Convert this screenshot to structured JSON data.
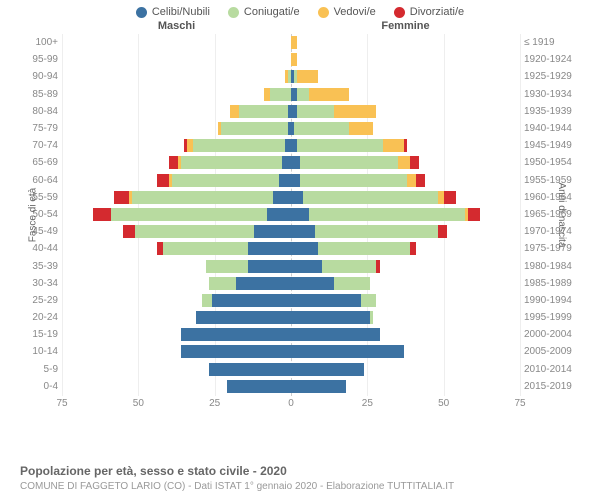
{
  "legend": [
    {
      "label": "Celibi/Nubili",
      "color": "#3c72a2"
    },
    {
      "label": "Coniugati/e",
      "color": "#b8dba0"
    },
    {
      "label": "Vedovi/e",
      "color": "#f9c154"
    },
    {
      "label": "Divorziati/e",
      "color": "#d42a2f"
    }
  ],
  "chart": {
    "type": "population-pyramid",
    "male_header": "Maschi",
    "female_header": "Femmine",
    "left_axis_title": "Fasce di età",
    "right_axis_title": "Anni di nascita",
    "xmax": 75,
    "xticks": [
      75,
      50,
      25,
      0,
      25,
      50,
      75
    ],
    "background_color": "#ffffff",
    "grid_color": "#eeeeee",
    "center_line_color": "#cccccc",
    "colors": {
      "celibi": "#3c72a2",
      "coniugati": "#b8dba0",
      "vedovi": "#f9c154",
      "divorziati": "#d42a2f"
    },
    "rows": [
      {
        "age": "100+",
        "birth": "≤ 1919",
        "m": {
          "c": 0,
          "g": 0,
          "v": 0,
          "d": 0
        },
        "f": {
          "c": 0,
          "g": 0,
          "v": 2,
          "d": 0
        }
      },
      {
        "age": "95-99",
        "birth": "1920-1924",
        "m": {
          "c": 0,
          "g": 0,
          "v": 0,
          "d": 0
        },
        "f": {
          "c": 0,
          "g": 0,
          "v": 2,
          "d": 0
        }
      },
      {
        "age": "90-94",
        "birth": "1925-1929",
        "m": {
          "c": 0,
          "g": 1,
          "v": 1,
          "d": 0
        },
        "f": {
          "c": 1,
          "g": 1,
          "v": 7,
          "d": 0
        }
      },
      {
        "age": "85-89",
        "birth": "1930-1934",
        "m": {
          "c": 0,
          "g": 7,
          "v": 2,
          "d": 0
        },
        "f": {
          "c": 2,
          "g": 4,
          "v": 13,
          "d": 0
        }
      },
      {
        "age": "80-84",
        "birth": "1935-1939",
        "m": {
          "c": 1,
          "g": 16,
          "v": 3,
          "d": 0
        },
        "f": {
          "c": 2,
          "g": 12,
          "v": 14,
          "d": 0
        }
      },
      {
        "age": "75-79",
        "birth": "1940-1944",
        "m": {
          "c": 1,
          "g": 22,
          "v": 1,
          "d": 0
        },
        "f": {
          "c": 1,
          "g": 18,
          "v": 8,
          "d": 0
        }
      },
      {
        "age": "70-74",
        "birth": "1945-1949",
        "m": {
          "c": 2,
          "g": 30,
          "v": 2,
          "d": 1
        },
        "f": {
          "c": 2,
          "g": 28,
          "v": 7,
          "d": 1
        }
      },
      {
        "age": "65-69",
        "birth": "1950-1954",
        "m": {
          "c": 3,
          "g": 33,
          "v": 1,
          "d": 3
        },
        "f": {
          "c": 3,
          "g": 32,
          "v": 4,
          "d": 3
        }
      },
      {
        "age": "60-64",
        "birth": "1955-1959",
        "m": {
          "c": 4,
          "g": 35,
          "v": 1,
          "d": 4
        },
        "f": {
          "c": 3,
          "g": 35,
          "v": 3,
          "d": 3
        }
      },
      {
        "age": "55-59",
        "birth": "1960-1964",
        "m": {
          "c": 6,
          "g": 46,
          "v": 1,
          "d": 5
        },
        "f": {
          "c": 4,
          "g": 44,
          "v": 2,
          "d": 4
        }
      },
      {
        "age": "50-54",
        "birth": "1965-1969",
        "m": {
          "c": 8,
          "g": 51,
          "v": 0,
          "d": 6
        },
        "f": {
          "c": 6,
          "g": 51,
          "v": 1,
          "d": 4
        }
      },
      {
        "age": "45-49",
        "birth": "1970-1974",
        "m": {
          "c": 12,
          "g": 39,
          "v": 0,
          "d": 4
        },
        "f": {
          "c": 8,
          "g": 40,
          "v": 0,
          "d": 3
        }
      },
      {
        "age": "40-44",
        "birth": "1975-1979",
        "m": {
          "c": 14,
          "g": 28,
          "v": 0,
          "d": 2
        },
        "f": {
          "c": 9,
          "g": 30,
          "v": 0,
          "d": 2
        }
      },
      {
        "age": "35-39",
        "birth": "1980-1984",
        "m": {
          "c": 14,
          "g": 14,
          "v": 0,
          "d": 0
        },
        "f": {
          "c": 10,
          "g": 18,
          "v": 0,
          "d": 1
        }
      },
      {
        "age": "30-34",
        "birth": "1985-1989",
        "m": {
          "c": 18,
          "g": 9,
          "v": 0,
          "d": 0
        },
        "f": {
          "c": 14,
          "g": 12,
          "v": 0,
          "d": 0
        }
      },
      {
        "age": "25-29",
        "birth": "1990-1994",
        "m": {
          "c": 26,
          "g": 3,
          "v": 0,
          "d": 0
        },
        "f": {
          "c": 23,
          "g": 5,
          "v": 0,
          "d": 0
        }
      },
      {
        "age": "20-24",
        "birth": "1995-1999",
        "m": {
          "c": 31,
          "g": 0,
          "v": 0,
          "d": 0
        },
        "f": {
          "c": 26,
          "g": 1,
          "v": 0,
          "d": 0
        }
      },
      {
        "age": "15-19",
        "birth": "2000-2004",
        "m": {
          "c": 36,
          "g": 0,
          "v": 0,
          "d": 0
        },
        "f": {
          "c": 29,
          "g": 0,
          "v": 0,
          "d": 0
        }
      },
      {
        "age": "10-14",
        "birth": "2005-2009",
        "m": {
          "c": 36,
          "g": 0,
          "v": 0,
          "d": 0
        },
        "f": {
          "c": 37,
          "g": 0,
          "v": 0,
          "d": 0
        }
      },
      {
        "age": "5-9",
        "birth": "2010-2014",
        "m": {
          "c": 27,
          "g": 0,
          "v": 0,
          "d": 0
        },
        "f": {
          "c": 24,
          "g": 0,
          "v": 0,
          "d": 0
        }
      },
      {
        "age": "0-4",
        "birth": "2015-2019",
        "m": {
          "c": 21,
          "g": 0,
          "v": 0,
          "d": 0
        },
        "f": {
          "c": 18,
          "g": 0,
          "v": 0,
          "d": 0
        }
      }
    ]
  },
  "footer_title": "Popolazione per età, sesso e stato civile - 2020",
  "footer_sub": "COMUNE DI FAGGETO LARIO (CO) - Dati ISTAT 1° gennaio 2020 - Elaborazione TUTTITALIA.IT"
}
